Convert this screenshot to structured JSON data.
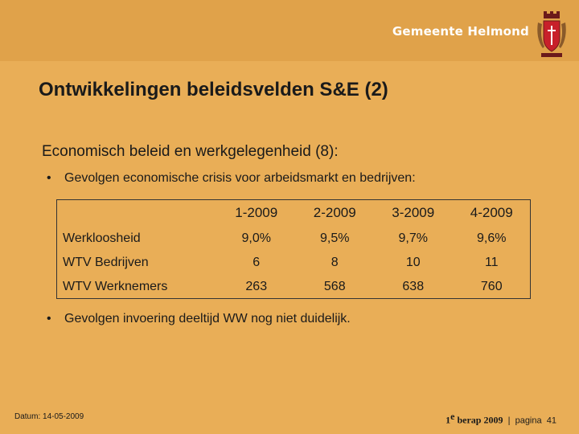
{
  "brand": {
    "name": "Gemeente Helmond"
  },
  "title": "Ontwikkelingen beleidsvelden S&E (2)",
  "subtitle": "Economisch beleid en werkgelegenheid (8):",
  "bullets": [
    "Gevolgen economische crisis voor arbeidsmarkt en bedrijven:",
    "Gevolgen invoering deeltijd WW nog niet duidelijk."
  ],
  "table": {
    "columns": [
      "1-2009",
      "2-2009",
      "3-2009",
      "4-2009"
    ],
    "rows": [
      {
        "label": "Werkloosheid",
        "values": [
          "9,0%",
          "9,5%",
          "9,7%",
          "9,6%"
        ]
      },
      {
        "label": "WTV Bedrijven",
        "values": [
          "6",
          "8",
          "10",
          "11"
        ]
      },
      {
        "label": "WTV Werknemers",
        "values": [
          "263",
          "568",
          "638",
          "760"
        ]
      }
    ]
  },
  "footer": {
    "date": "Datum: 14-05-2009",
    "berap_num": "1",
    "berap_sup": "e",
    "berap_text": " berap 2009",
    "separator": "|",
    "page_label": "pagina",
    "page_number": "41"
  },
  "colors": {
    "background": "#E9AE57",
    "header_band": "#E0A24A",
    "text": "#1a1a1a",
    "brand_text": "#ffffff"
  }
}
